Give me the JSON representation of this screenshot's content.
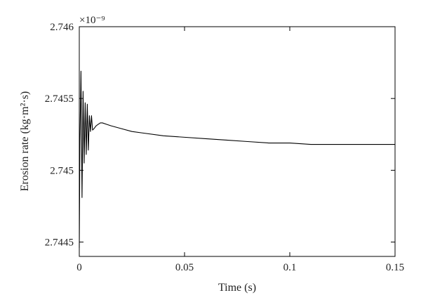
{
  "chart_data": {
    "type": "line",
    "title": "",
    "xlabel": "Time (s)",
    "ylabel": "Erosion rate (kg·m²·s)",
    "y_exponent_label": "×10⁻⁹",
    "xlim": [
      0,
      0.15
    ],
    "ylim": [
      2.7444,
      2.746
    ],
    "x_ticks": [
      0,
      0.05,
      0.1,
      0.15
    ],
    "x_tick_labels": [
      "0",
      "0.05",
      "0.1",
      "0.15"
    ],
    "y_ticks": [
      2.7445,
      2.745,
      2.7455,
      2.746
    ],
    "y_tick_labels": [
      "2.7445",
      "2.745",
      "2.7455",
      "2.746"
    ],
    "grid": false,
    "series": [
      {
        "color": "#000000",
        "x": [
          0,
          0.0003,
          0.0008,
          0.0013,
          0.0018,
          0.0023,
          0.0028,
          0.0033,
          0.0038,
          0.0043,
          0.0048,
          0.0053,
          0.0058,
          0.0063,
          0.007,
          0.008,
          0.009,
          0.01,
          0.011,
          0.013,
          0.015,
          0.02,
          0.025,
          0.03,
          0.04,
          0.05,
          0.06,
          0.07,
          0.08,
          0.09,
          0.1,
          0.11,
          0.12,
          0.13,
          0.14,
          0.15
        ],
        "y": [
          2.74446,
          2.7452,
          2.74569,
          2.74481,
          2.74555,
          2.74505,
          2.74547,
          2.74511,
          2.74546,
          2.74514,
          2.74538,
          2.74527,
          2.74538,
          2.74528,
          2.74529,
          2.74531,
          2.74532,
          2.74533,
          2.74533,
          2.74532,
          2.74531,
          2.74529,
          2.74527,
          2.74526,
          2.74524,
          2.74523,
          2.74522,
          2.74521,
          2.7452,
          2.74519,
          2.74519,
          2.74518,
          2.74518,
          2.74518,
          2.74518,
          2.74518
        ]
      }
    ]
  }
}
